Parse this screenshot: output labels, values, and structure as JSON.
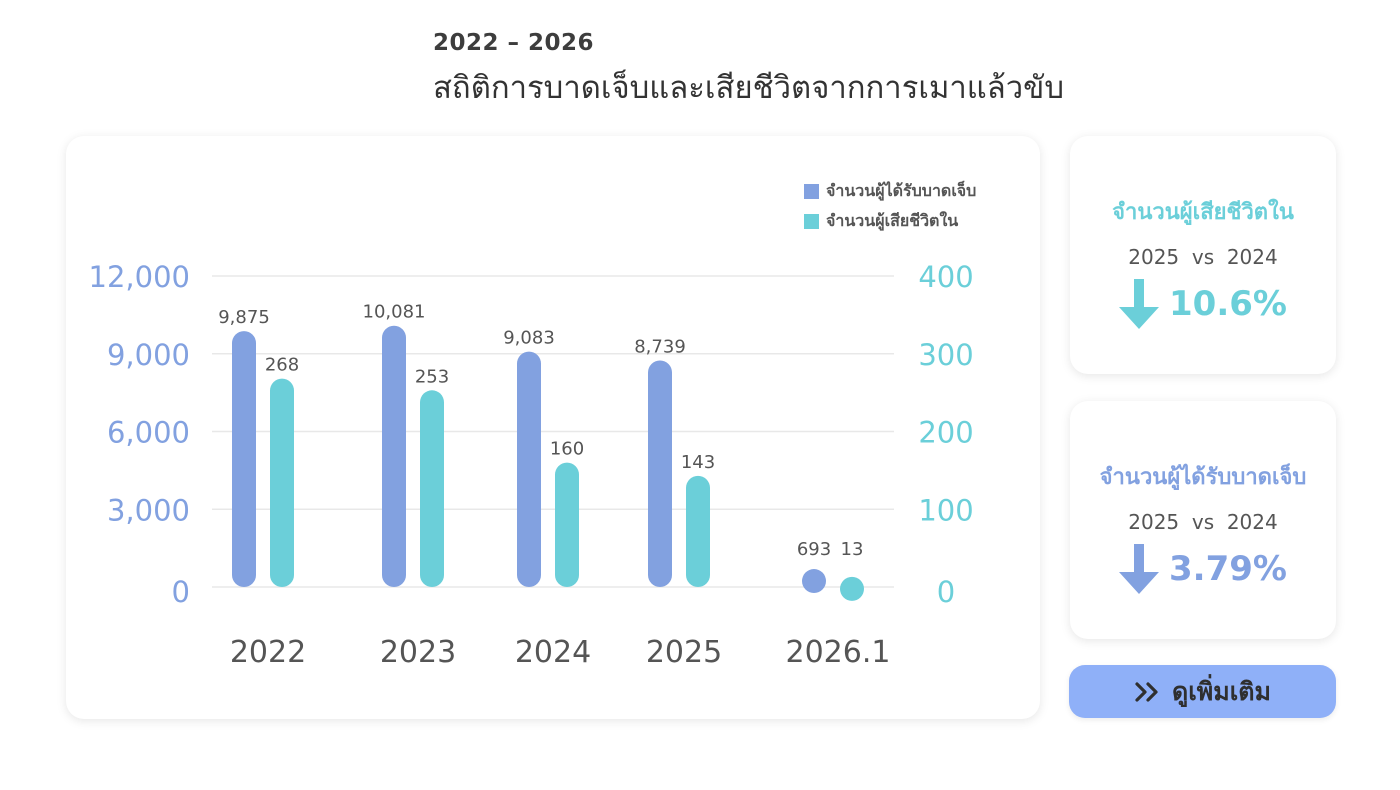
{
  "header": {
    "period": "2022 – 2026",
    "title": "สถิติการบาดเจ็บและเสียชีวิตจากการเมาแล้วขับ"
  },
  "colors": {
    "injuries": "#82a1e0",
    "deaths": "#6bcfd9",
    "button": "#8fb0f8"
  },
  "legend": [
    {
      "label": "จำนวนผู้ได้รับบาดเจ็บ",
      "color": "#82a1e0"
    },
    {
      "label": "จำนวนผู้เสียชีวิตใน",
      "color": "#6bcfd9"
    }
  ],
  "chart_data": {
    "type": "bar",
    "categories": [
      "2022",
      "2023",
      "2024",
      "2025",
      "2026.1"
    ],
    "series": [
      {
        "name": "จำนวนผู้ได้รับบาดเจ็บ",
        "axis": "left",
        "values": [
          9875,
          10081,
          9083,
          8739,
          693
        ],
        "labels": [
          "9,875",
          "10,081",
          "9,083",
          "8,739",
          "693"
        ]
      },
      {
        "name": "จำนวนผู้เสียชีวิตใน",
        "axis": "right",
        "values": [
          268,
          253,
          160,
          143,
          13
        ],
        "labels": [
          "268",
          "253",
          "160",
          "143",
          "13"
        ]
      }
    ],
    "y_left": {
      "ticks": [
        0,
        3000,
        6000,
        9000,
        12000
      ],
      "tick_labels": [
        "0",
        "3,000",
        "6,000",
        "9,000",
        "12,000"
      ],
      "ylim": [
        0,
        12000
      ]
    },
    "y_right": {
      "ticks": [
        0,
        100,
        200,
        300,
        400
      ],
      "tick_labels": [
        "0",
        "100",
        "200",
        "300",
        "400"
      ],
      "ylim": [
        0,
        400
      ]
    },
    "grid": true,
    "legend_position": "top-right"
  },
  "stats": {
    "deaths": {
      "title": "จำนวนผู้เสียชีวิตใน",
      "compare": "2025  vs  2024",
      "direction": "down",
      "icon": "arrow-down-icon",
      "value": "10.6%"
    },
    "injuries": {
      "title": "จำนวนผู้ได้รับบาดเจ็บ",
      "compare": "2025  vs  2024",
      "direction": "down",
      "icon": "arrow-down-icon",
      "value": "3.79%"
    }
  },
  "more_button": {
    "icon": "double-chevron-right-icon",
    "label": "ดูเพิ่มเติม"
  }
}
